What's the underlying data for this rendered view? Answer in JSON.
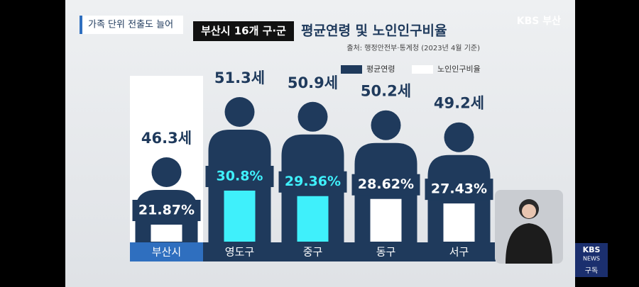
{
  "banner": "가족 단위 전출도 늘어",
  "logo": "KBS 부산",
  "news_logo": {
    "top": "KBS",
    "middle": "NEWS",
    "bottom": "구독"
  },
  "chart_data": {
    "type": "pictogram-bar",
    "title_box": "부산시 16개 구·군",
    "title": "평균연령 및 노인인구비율",
    "source": "출처: 행정안전부·통계청 (2023년 4월 기준)",
    "categories": [
      "부산시",
      "영도구",
      "중구",
      "동구",
      "서구"
    ],
    "category_colors": [
      "#2f6fbf",
      "#1f3a5c",
      "#1f3a5c",
      "#1f3a5c",
      "#1f3a5c"
    ],
    "series": [
      {
        "name": "평균연령",
        "color": "#1f3a5c",
        "values": [
          46.3,
          51.3,
          50.9,
          50.2,
          49.2
        ],
        "value_labels": [
          "46.3세",
          "51.3세",
          "50.9세",
          "50.2세",
          "49.2세"
        ]
      },
      {
        "name": "노인인구비율",
        "color": "#ffffff",
        "point_colors": [
          "#ffffff",
          "#3ff0fb",
          "#3ff0fb",
          "#ffffff",
          "#ffffff"
        ],
        "values": [
          21.87,
          30.8,
          29.36,
          28.62,
          27.43
        ],
        "value_labels": [
          "21.87%",
          "30.8%",
          "29.36%",
          "28.62%",
          "27.43%"
        ]
      }
    ]
  }
}
